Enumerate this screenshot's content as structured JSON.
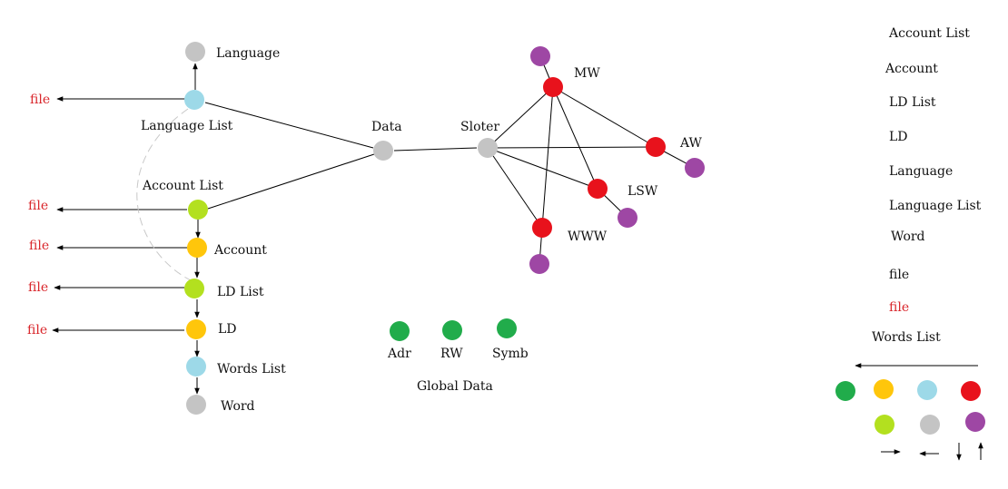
{
  "colors": {
    "gray": "#c4c4c4",
    "lightblue": "#9dd9e8",
    "lime": "#b3e01f",
    "yellow": "#ffc60b",
    "red": "#e8121c",
    "purple": "#9e47a4",
    "green": "#21ac4b",
    "file_text": "#d9262b",
    "edge": "#000000",
    "dashed_edge": "#c8c8c8"
  },
  "left_tree": {
    "language": "Language",
    "language_list": "Language List",
    "account_list": "Account List",
    "account": "Account",
    "ld_list": "LD List",
    "ld": "LD",
    "words_list": "Words List",
    "word": "Word",
    "file_label": "file"
  },
  "center": {
    "data": "Data",
    "sloter": "Sloter",
    "mw": "MW",
    "aw": "AW",
    "lsw": "LSW",
    "www": "WWW"
  },
  "global": {
    "adr": "Adr",
    "rw": "RW",
    "symb": "Symb",
    "title": "Global Data"
  },
  "legend": {
    "account_list": "Account List",
    "account": "Account",
    "ld_list": "LD List",
    "ld": "LD",
    "language": "Language",
    "language_list": "Language List",
    "word": "Word",
    "file_black": "file",
    "file_red": "file",
    "words_list": "Words List"
  }
}
